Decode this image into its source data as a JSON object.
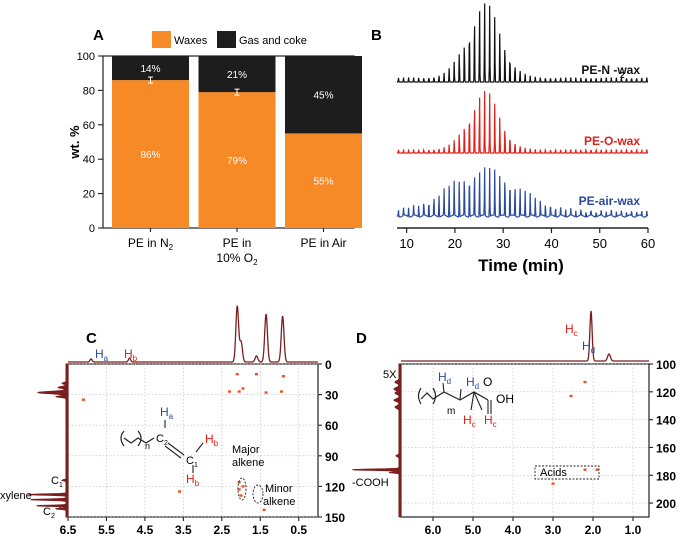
{
  "chart_data": [
    {
      "panel": "A",
      "type": "bar",
      "stacked": true,
      "legend": [
        "Waxes",
        "Gas and coke"
      ],
      "legend_position": "top",
      "categories": [
        "PE in N",
        "PE in 10% O",
        "PE in Air"
      ],
      "category_lines": [
        [
          "PE in N",
          "2"
        ],
        [
          "PE in",
          "10% O",
          "2"
        ],
        [
          "PE in Air"
        ]
      ],
      "series": [
        {
          "name": "Waxes",
          "color": "#f58a27",
          "values": [
            86,
            79,
            55
          ],
          "labels": [
            "86%",
            "79%",
            "55%"
          ]
        },
        {
          "name": "Gas and coke",
          "color": "#1d1d1d",
          "values": [
            14,
            21,
            45
          ],
          "labels": [
            "14%",
            "21%",
            "45%"
          ]
        }
      ],
      "ylabel": "wt. %",
      "ylim": [
        0,
        100
      ],
      "yticks": [
        "0",
        "20",
        "40",
        "60",
        "80",
        "100"
      ],
      "error_bars_present": true,
      "grid": false
    },
    {
      "panel": "B",
      "type": "line",
      "xlabel": "Time (min)",
      "xlim": [
        8,
        60
      ],
      "xticks": [
        "10",
        "20",
        "30",
        "40",
        "50",
        "60"
      ],
      "series": [
        {
          "name": "PE-N -wax",
          "subscript": "2",
          "color": "#111111",
          "peak_center": 26,
          "peak_width": 3.5
        },
        {
          "name": "PE-O-wax",
          "color": "#e0201b",
          "peak_center": 26,
          "peak_width": 3.2
        },
        {
          "name": "PE-air-wax",
          "color": "#2a4a9c",
          "peak_center": 26,
          "peak_width": 7.0
        }
      ]
    },
    {
      "panel": "C",
      "type": "heatmap",
      "xlim": [
        6.5,
        0
      ],
      "xticks": [
        "6.5",
        "5.5",
        "4.5",
        "3.5",
        "2.5",
        "1.5",
        "0.5"
      ],
      "ylim": [
        0,
        150
      ],
      "yticks": [
        "0",
        "30",
        "60",
        "90",
        "120",
        "150"
      ],
      "top_labels": [
        {
          "text": "H",
          "sub": "a",
          "ppm": 5.9,
          "color": "#2a4a9c"
        },
        {
          "text": "H",
          "sub": "b",
          "ppm": 4.9,
          "color": "#e0201b"
        }
      ],
      "left_labels": [
        "C",
        "1",
        "xylene",
        "C",
        "2"
      ],
      "annotations": [
        "Major",
        "alkene",
        "Minor",
        "alkene"
      ],
      "structure_labels": [
        "H",
        "a",
        "H",
        "b",
        "H",
        "b",
        "C",
        "2",
        "C",
        "1",
        "n"
      ],
      "projection_color": "#7a1f1f",
      "crosspeaks": [
        {
          "x": 2.05,
          "y": 123
        },
        {
          "x": 2.05,
          "y": 116
        },
        {
          "x": 2.0,
          "y": 129
        },
        {
          "x": 1.95,
          "y": 120
        },
        {
          "x": 2.05,
          "y": 27
        },
        {
          "x": 1.95,
          "y": 24
        },
        {
          "x": 2.3,
          "y": 27
        },
        {
          "x": 1.35,
          "y": 28
        },
        {
          "x": 0.95,
          "y": 27
        },
        {
          "x": 2.1,
          "y": 10
        },
        {
          "x": 1.6,
          "y": 10
        },
        {
          "x": 0.9,
          "y": 12
        },
        {
          "x": 6.1,
          "y": 35
        },
        {
          "x": 3.6,
          "y": 125
        },
        {
          "x": 1.4,
          "y": 143
        }
      ]
    },
    {
      "panel": "D",
      "type": "heatmap",
      "xlim": [
        6.8,
        0.6
      ],
      "xticks": [
        "6.0",
        "5.0",
        "4.0",
        "3.0",
        "2.0",
        "1.0"
      ],
      "ylim": [
        100,
        210
      ],
      "yticks": [
        "100",
        "120",
        "140",
        "160",
        "180",
        "200"
      ],
      "top_labels": [
        {
          "text": "H",
          "sub": "c",
          "ppm": 2.05,
          "color": "#e0201b"
        },
        {
          "text": "H",
          "sub": "d",
          "ppm": 1.6,
          "color": "#2a4a9c"
        }
      ],
      "left_labels": [
        "5X",
        "-COOH"
      ],
      "annotations": [
        "Acids"
      ],
      "structure_labels": [
        "H",
        "d",
        "H",
        "d",
        "H",
        "c",
        "H",
        "c",
        "OH",
        "O",
        "m"
      ],
      "projection_color": "#7a1f1f",
      "crosspeaks": [
        {
          "x": 2.2,
          "y": 176
        },
        {
          "x": 1.9,
          "y": 176
        },
        {
          "x": 2.55,
          "y": 123
        },
        {
          "x": 3.0,
          "y": 186
        },
        {
          "x": 2.2,
          "y": 113
        }
      ]
    }
  ]
}
